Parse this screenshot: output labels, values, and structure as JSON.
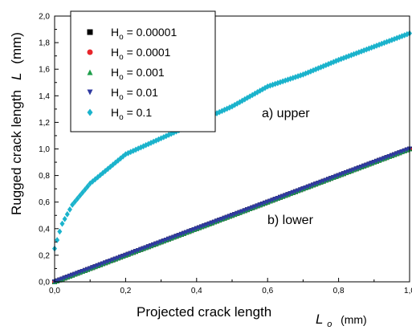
{
  "chart_data": {
    "type": "scatter",
    "xlabel": "Projected crack length",
    "xlabel_symbol": "L",
    "xlabel_subscript": "o",
    "xlabel_unit": "(mm)",
    "ylabel": "Rugged crack length",
    "ylabel_symbol": "L",
    "ylabel_unit": "(mm)",
    "xlim": [
      0,
      1.0
    ],
    "ylim": [
      0,
      2.0
    ],
    "x_ticks": [
      "0,0",
      "0,2",
      "0,4",
      "0,6",
      "0,8",
      "1,0"
    ],
    "y_ticks": [
      "0,0",
      "0,2",
      "0,4",
      "0,6",
      "0,8",
      "1,0",
      "1,2",
      "1,4",
      "1,6",
      "1,8",
      "2,0"
    ],
    "grid": false,
    "legend_position": "top-left",
    "annotations": [
      "a) upper",
      "b) lower"
    ],
    "series": [
      {
        "name": "Ho = 0.00001",
        "label_main": "H",
        "label_sub": "o",
        "label_value": " = 0.00001",
        "marker": "square",
        "color": "#000000",
        "y_at_x1": 1.0,
        "curve": "power",
        "exponent": 1.0
      },
      {
        "name": "Ho = 0.0001",
        "label_main": "H",
        "label_sub": "o",
        "label_value": " = 0.0001",
        "marker": "circle",
        "color": "#e8262b",
        "y_at_x1": 1.0,
        "curve": "power",
        "exponent": 1.0
      },
      {
        "name": "Ho = 0.001",
        "label_main": "H",
        "label_sub": "o",
        "label_value": " = 0.001",
        "marker": "triangle-up",
        "color": "#1e9e4a",
        "y_at_x1": 1.0,
        "curve": "power",
        "exponent": 1.0
      },
      {
        "name": "Ho = 0.01",
        "label_main": "H",
        "label_sub": "o",
        "label_value": " = 0.01",
        "marker": "triangle-down",
        "color": "#2f3aa0",
        "y_at_x1": 1.0,
        "curve": "power",
        "exponent": 1.0
      },
      {
        "name": "Ho = 0.1",
        "label_main": "H",
        "label_sub": "o",
        "label_value": " = 0.1",
        "marker": "diamond",
        "color": "#1bb3cc",
        "y_at_x1": 1.87,
        "curve": "power",
        "exponent": 0.6,
        "sample_points": [
          [
            0.0,
            0.25
          ],
          [
            0.02,
            0.43
          ],
          [
            0.05,
            0.58
          ],
          [
            0.1,
            0.74
          ],
          [
            0.2,
            0.96
          ],
          [
            0.3,
            1.08
          ],
          [
            0.4,
            1.2
          ],
          [
            0.5,
            1.32
          ],
          [
            0.6,
            1.47
          ],
          [
            0.7,
            1.56
          ],
          [
            0.8,
            1.67
          ],
          [
            0.9,
            1.77
          ],
          [
            1.0,
            1.87
          ]
        ]
      }
    ]
  }
}
